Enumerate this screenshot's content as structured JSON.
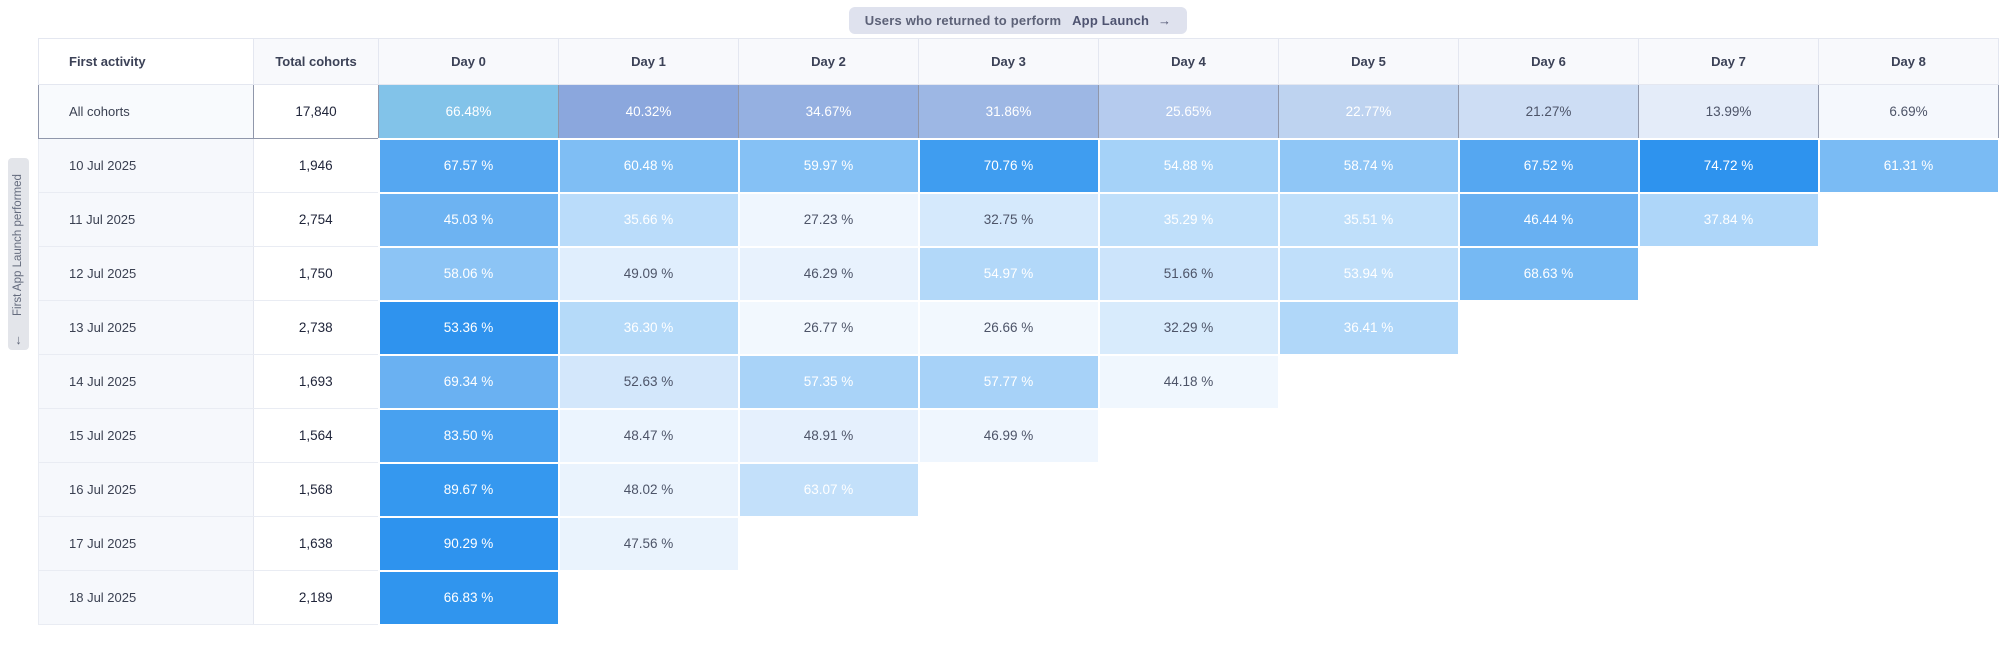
{
  "badge": {
    "text": "Users who returned to perform",
    "event": "App Launch",
    "arrow": "→"
  },
  "side_label": {
    "arrow": "↓",
    "text": "First App Launch performed"
  },
  "columns": {
    "first_activity": "First activity",
    "total_cohorts": "Total cohorts",
    "days": [
      "Day 0",
      "Day 1",
      "Day 2",
      "Day 3",
      "Day 4",
      "Day 5",
      "Day 6",
      "Day 7",
      "Day 8"
    ]
  },
  "rows": [
    {
      "label": "All cohorts",
      "total": "17,840",
      "summary": true,
      "cells": [
        {
          "v": "66.48%",
          "bg": "#82c3e9",
          "dark": false
        },
        {
          "v": "40.32%",
          "bg": "#8ba7dd",
          "dark": false
        },
        {
          "v": "34.67%",
          "bg": "#95b0e1",
          "dark": false
        },
        {
          "v": "31.86%",
          "bg": "#9db7e4",
          "dark": false
        },
        {
          "v": "25.65%",
          "bg": "#b5cbee",
          "dark": false
        },
        {
          "v": "22.77%",
          "bg": "#bed3f0",
          "dark": false
        },
        {
          "v": "21.27%",
          "bg": "#cdddf4",
          "dark": true
        },
        {
          "v": "13.99%",
          "bg": "#e4ecf9",
          "dark": true
        },
        {
          "v": "6.69%",
          "bg": "#f5f8fd",
          "dark": true
        }
      ]
    },
    {
      "label": "10 Jul 2025",
      "total": "1,946",
      "summary": false,
      "cells": [
        {
          "v": "67.57 %",
          "bg": "#55a7f1",
          "dark": false
        },
        {
          "v": "60.48 %",
          "bg": "#7fbef4",
          "dark": false
        },
        {
          "v": "59.97 %",
          "bg": "#85c1f5",
          "dark": false
        },
        {
          "v": "70.76 %",
          "bg": "#3f9df0",
          "dark": false
        },
        {
          "v": "54.88 %",
          "bg": "#a5d2f8",
          "dark": false
        },
        {
          "v": "58.74 %",
          "bg": "#8fc6f6",
          "dark": false
        },
        {
          "v": "67.52 %",
          "bg": "#55a7f1",
          "dark": false
        },
        {
          "v": "74.72 %",
          "bg": "#2e93ee",
          "dark": false
        },
        {
          "v": "61.31 %",
          "bg": "#7abbf4",
          "dark": false
        }
      ]
    },
    {
      "label": "11 Jul 2025",
      "total": "2,754",
      "summary": false,
      "cells": [
        {
          "v": "45.03 %",
          "bg": "#6db3f2",
          "dark": false
        },
        {
          "v": "35.66 %",
          "bg": "#badcfa",
          "dark": false
        },
        {
          "v": "27.23 %",
          "bg": "#eff6fe",
          "dark": true
        },
        {
          "v": "32.75 %",
          "bg": "#d5e9fc",
          "dark": true
        },
        {
          "v": "35.29 %",
          "bg": "#bfdffa",
          "dark": false
        },
        {
          "v": "35.51 %",
          "bg": "#bfdffa",
          "dark": false
        },
        {
          "v": "46.44 %",
          "bg": "#68b0f2",
          "dark": false
        },
        {
          "v": "37.84 %",
          "bg": "#aed6f9",
          "dark": false
        },
        null
      ]
    },
    {
      "label": "12 Jul 2025",
      "total": "1,750",
      "summary": false,
      "cells": [
        {
          "v": "58.06 %",
          "bg": "#8cc4f5",
          "dark": false
        },
        {
          "v": "49.09 %",
          "bg": "#e0eefd",
          "dark": true
        },
        {
          "v": "46.29 %",
          "bg": "#e8f2fd",
          "dark": true
        },
        {
          "v": "54.97 %",
          "bg": "#b2d8f9",
          "dark": false
        },
        {
          "v": "51.66 %",
          "bg": "#cce4fb",
          "dark": true
        },
        {
          "v": "53.94 %",
          "bg": "#c0dffa",
          "dark": false
        },
        {
          "v": "68.63 %",
          "bg": "#76b9f3",
          "dark": false
        },
        null,
        null
      ]
    },
    {
      "label": "13 Jul 2025",
      "total": "2,738",
      "summary": false,
      "cells": [
        {
          "v": "53.36 %",
          "bg": "#2f93ee",
          "dark": false
        },
        {
          "v": "36.30 %",
          "bg": "#b5daf9",
          "dark": false
        },
        {
          "v": "26.77 %",
          "bg": "#f2f8fe",
          "dark": true
        },
        {
          "v": "26.66 %",
          "bg": "#f2f8fe",
          "dark": true
        },
        {
          "v": "32.29 %",
          "bg": "#d8ebfc",
          "dark": true
        },
        {
          "v": "36.41 %",
          "bg": "#b0d7f9",
          "dark": false
        },
        null,
        null,
        null
      ]
    },
    {
      "label": "14 Jul 2025",
      "total": "1,693",
      "summary": false,
      "cells": [
        {
          "v": "69.34 %",
          "bg": "#6ab1f2",
          "dark": false
        },
        {
          "v": "52.63 %",
          "bg": "#d3e7fb",
          "dark": true
        },
        {
          "v": "57.35 %",
          "bg": "#a9d3f8",
          "dark": false
        },
        {
          "v": "57.77 %",
          "bg": "#a7d2f8",
          "dark": false
        },
        {
          "v": "44.18 %",
          "bg": "#f0f7fe",
          "dark": true
        },
        null,
        null,
        null,
        null
      ]
    },
    {
      "label": "15 Jul 2025",
      "total": "1,564",
      "summary": false,
      "cells": [
        {
          "v": "83.50 %",
          "bg": "#48a1f0",
          "dark": false
        },
        {
          "v": "48.47 %",
          "bg": "#ebf4fe",
          "dark": true
        },
        {
          "v": "48.91 %",
          "bg": "#e5f0fd",
          "dark": true
        },
        {
          "v": "46.99 %",
          "bg": "#eff6fe",
          "dark": true
        },
        null,
        null,
        null,
        null,
        null
      ]
    },
    {
      "label": "16 Jul 2025",
      "total": "1,568",
      "summary": false,
      "cells": [
        {
          "v": "89.67 %",
          "bg": "#3598ef",
          "dark": false
        },
        {
          "v": "48.02 %",
          "bg": "#eaf3fd",
          "dark": true
        },
        {
          "v": "63.07 %",
          "bg": "#c3e0fa",
          "dark": false
        },
        null,
        null,
        null,
        null,
        null,
        null
      ]
    },
    {
      "label": "17 Jul 2025",
      "total": "1,638",
      "summary": false,
      "cells": [
        {
          "v": "90.29 %",
          "bg": "#2e93ee",
          "dark": false
        },
        {
          "v": "47.56 %",
          "bg": "#eaf3fd",
          "dark": true
        },
        null,
        null,
        null,
        null,
        null,
        null,
        null
      ]
    },
    {
      "label": "18 Jul 2025",
      "total": "2,189",
      "summary": false,
      "cells": [
        {
          "v": "66.83 %",
          "bg": "#3095ee",
          "dark": false
        },
        null,
        null,
        null,
        null,
        null,
        null,
        null,
        null
      ]
    }
  ],
  "colors": {
    "accent_bright": "#2e93ee",
    "badge_bg": "#dfe2ee",
    "badge_text": "#5c6177",
    "summary_border": "#9097ab",
    "side_tab_bg": "#e3e5ea"
  }
}
